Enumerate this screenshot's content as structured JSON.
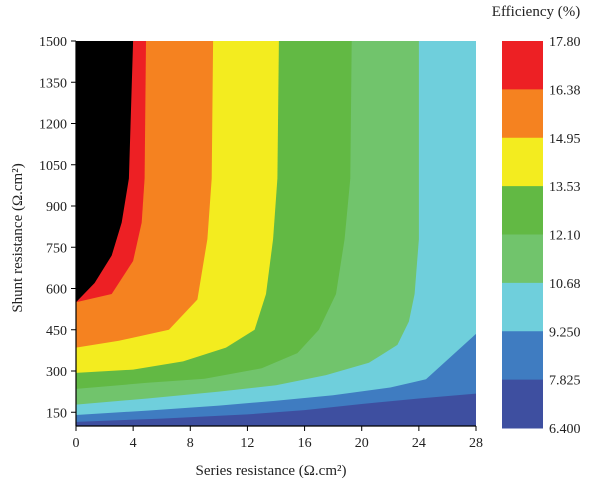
{
  "chart_data": {
    "type": "contour",
    "xlabel": "Series resistance (Ω.cm²)",
    "ylabel": "Shunt resistance (Ω.cm²)",
    "colorbar_title": "Efficiency (%)",
    "xlim": [
      0,
      28
    ],
    "ylim": [
      100,
      1500
    ],
    "x_ticks": [
      0,
      4,
      8,
      12,
      16,
      20,
      24,
      28
    ],
    "y_ticks": [
      150,
      300,
      450,
      600,
      750,
      900,
      1050,
      1200,
      1350,
      1500
    ],
    "levels": [
      "6.400",
      "7.825",
      "9.250",
      "10.68",
      "12.10",
      "13.53",
      "14.95",
      "16.38",
      "17.80"
    ],
    "level_colors": [
      "#3e4fa0",
      "#3f7cc1",
      "#6fcfdc",
      "#71c46c",
      "#62b944",
      "#f3ec1f",
      "#f58220",
      "#ed2024"
    ],
    "boundaries": [
      {
        "level": "7.825",
        "points": [
          [
            0,
            115
          ],
          [
            6,
            127
          ],
          [
            12,
            142
          ],
          [
            16,
            158
          ],
          [
            20,
            180
          ],
          [
            24,
            200
          ],
          [
            28,
            218
          ]
        ]
      },
      {
        "level": "9.250",
        "points": [
          [
            0,
            140
          ],
          [
            5,
            156
          ],
          [
            10,
            174
          ],
          [
            14,
            192
          ],
          [
            18,
            212
          ],
          [
            22,
            240
          ],
          [
            24.5,
            270
          ],
          [
            28,
            435
          ]
        ]
      },
      {
        "level": "10.68",
        "points": [
          [
            0,
            178
          ],
          [
            5,
            200
          ],
          [
            10,
            225
          ],
          [
            14,
            248
          ],
          [
            17.5,
            285
          ],
          [
            20.5,
            330
          ],
          [
            22.5,
            395
          ],
          [
            23.3,
            480
          ],
          [
            23.7,
            580
          ],
          [
            24,
            780
          ],
          [
            24,
            1000
          ],
          [
            24,
            1500
          ]
        ]
      },
      {
        "level": "12.10",
        "points": [
          [
            0,
            235
          ],
          [
            5,
            257
          ],
          [
            9,
            272
          ],
          [
            13,
            310
          ],
          [
            15.5,
            365
          ],
          [
            17,
            450
          ],
          [
            18.2,
            580
          ],
          [
            18.8,
            780
          ],
          [
            19.2,
            1000
          ],
          [
            19.3,
            1500
          ]
        ]
      },
      {
        "level": "13.53",
        "points": [
          [
            0,
            293
          ],
          [
            4,
            305
          ],
          [
            7.5,
            335
          ],
          [
            10.5,
            385
          ],
          [
            12.5,
            450
          ],
          [
            13.3,
            580
          ],
          [
            13.8,
            780
          ],
          [
            14.1,
            1000
          ],
          [
            14.2,
            1500
          ]
        ]
      },
      {
        "level": "14.95",
        "points": [
          [
            0,
            385
          ],
          [
            3,
            410
          ],
          [
            6.5,
            450
          ],
          [
            8.5,
            560
          ],
          [
            9.2,
            780
          ],
          [
            9.5,
            1000
          ],
          [
            9.6,
            1500
          ]
        ]
      },
      {
        "level": "16.38",
        "points": [
          [
            0,
            550
          ],
          [
            2.5,
            580
          ],
          [
            4,
            700
          ],
          [
            4.6,
            840
          ],
          [
            4.8,
            1000
          ],
          [
            4.9,
            1500
          ]
        ]
      },
      {
        "level": "17.80",
        "points": [
          [
            0,
            550
          ],
          [
            1.3,
            620
          ],
          [
            2.5,
            720
          ],
          [
            3.2,
            840
          ],
          [
            3.7,
            1000
          ],
          [
            4,
            1500
          ]
        ]
      }
    ]
  }
}
